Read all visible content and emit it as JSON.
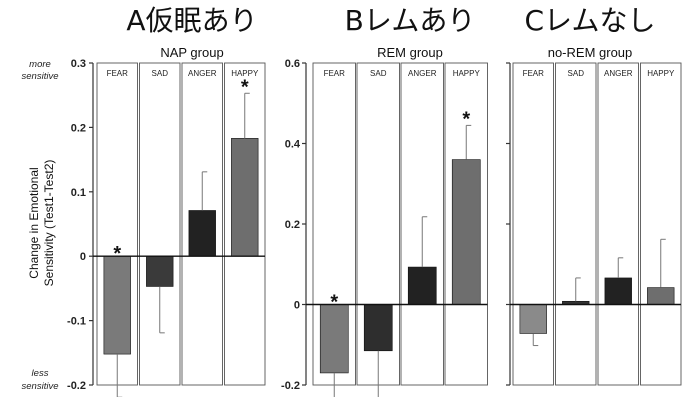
{
  "figure": {
    "ylabel_line1": "Change in Emotional",
    "ylabel_line2": "Sensitivity (Test1-Test2)",
    "more_sensitive_line1": "more",
    "more_sensitive_line2": "sensitive",
    "less_sensitive_line1": "less",
    "less_sensitive_line2": "sensitive"
  },
  "chart_data": [
    {
      "type": "bar",
      "panel_title": "A仮眠あり",
      "title": "NAP group",
      "categories": [
        "FEAR",
        "SAD",
        "ANGER",
        "HAPPY"
      ],
      "values": [
        -0.152,
        -0.047,
        0.071,
        0.183
      ],
      "errors": [
        0.067,
        0.072,
        0.06,
        0.07
      ],
      "significant": [
        true,
        false,
        false,
        true
      ],
      "bar_colors": [
        "#7a7a7a",
        "#3a3a3a",
        "#222222",
        "#6e6e6e"
      ],
      "ylim": [
        -0.2,
        0.3
      ],
      "yticks": [
        "0.3",
        "0.2",
        "0.1",
        "0",
        "-0.1",
        "-0.2"
      ],
      "ytick_values": [
        0.3,
        0.2,
        0.1,
        0,
        -0.1,
        -0.2
      ]
    },
    {
      "type": "bar",
      "panel_title": "Bレムあり",
      "title": "REM group",
      "categories": [
        "FEAR",
        "SAD",
        "ANGER",
        "HAPPY"
      ],
      "values": [
        -0.17,
        -0.115,
        0.093,
        0.36
      ],
      "errors": [
        0.07,
        0.15,
        0.125,
        0.085
      ],
      "significant": [
        true,
        false,
        false,
        true
      ],
      "bar_colors": [
        "#7a7a7a",
        "#2e2e2e",
        "#222222",
        "#6e6e6e"
      ],
      "ylim": [
        -0.2,
        0.6
      ],
      "yticks": [
        "0.6",
        "0.4",
        "0.2",
        "0",
        "-0.2"
      ],
      "ytick_values": [
        0.6,
        0.4,
        0.2,
        0,
        -0.2
      ]
    },
    {
      "type": "bar",
      "panel_title": "Cレムなし",
      "title": "no-REM group",
      "categories": [
        "FEAR",
        "SAD",
        "ANGER",
        "HAPPY"
      ],
      "values": [
        -0.072,
        0.008,
        0.066,
        0.042
      ],
      "errors": [
        0.03,
        0.058,
        0.05,
        0.12
      ],
      "significant": [
        false,
        false,
        false,
        false
      ],
      "bar_colors": [
        "#8a8a8a",
        "#333333",
        "#222222",
        "#6e6e6e"
      ],
      "ylim": [
        -0.2,
        0.6
      ],
      "yticks": [],
      "ytick_values": [
        0.6,
        0.4,
        0.2,
        0,
        -0.2
      ]
    }
  ]
}
